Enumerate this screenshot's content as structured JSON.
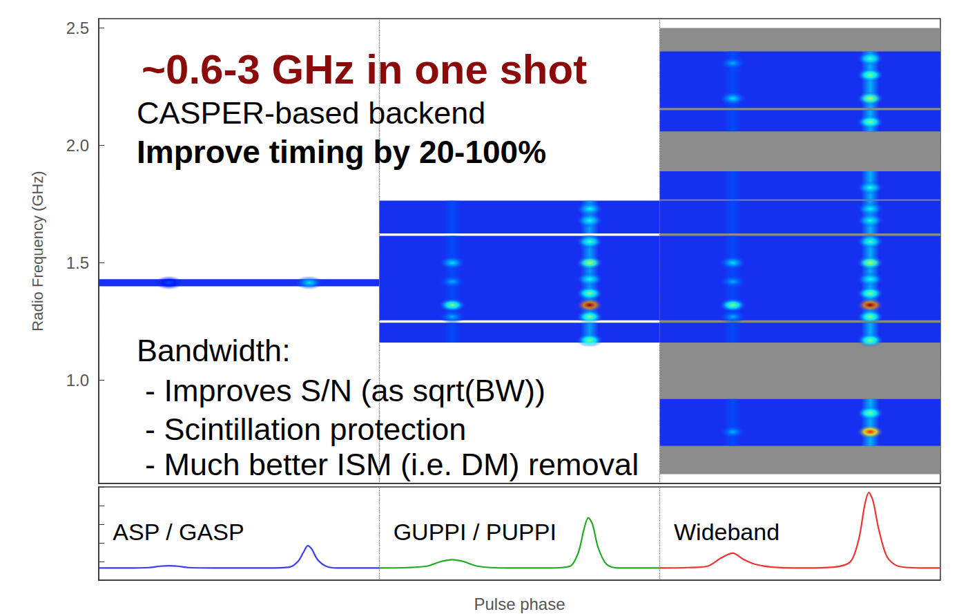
{
  "chart_data": [
    {
      "type": "dynamic_spectrum",
      "title": "~0.6-3 GHz in one shot",
      "annotations": [
        "CASPER-based backend",
        "Improve timing by 20-100%",
        "Bandwidth:",
        "- Improves S/N (as sqrt(BW))",
        "- Scintillation protection",
        "- Much better ISM (i.e. DM) removal"
      ],
      "ylabel": "Radio Frequency (GHz)",
      "xlim": [
        0,
        3
      ],
      "xticks": [
        0,
        1,
        2,
        3
      ],
      "ylim": [
        0.56,
        2.54
      ],
      "yticks": [
        {
          "value": 1,
          "label": "1.0"
        },
        1.5,
        {
          "value": 2,
          "label": "2.0"
        },
        2.5
      ],
      "grid": "x",
      "tick_labels": "y",
      "color": "#1530f0",
      "panels": [
        {
          "phase_range": [
            0,
            1
          ],
          "bands": [
            [
              1.4,
              1.43
            ]
          ],
          "pulses": [
            [
              0.75,
              0.2
            ],
            [
              0.25,
              0.12
            ]
          ],
          "scintles": [
            [
              0.75,
              1.415,
              0.35
            ],
            [
              0.25,
              1.415,
              0.2
            ]
          ]
        },
        {
          "phase_range": [
            1,
            2
          ],
          "bands": [
            [
              1.16,
              1.245
            ],
            [
              1.255,
              1.615
            ],
            [
              1.625,
              1.765
            ]
          ],
          "pulses": [
            [
              1.75,
              0.3
            ],
            [
              1.26,
              0.2
            ]
          ],
          "scintles": [
            [
              1.75,
              1.17,
              0.5
            ],
            [
              1.75,
              1.27,
              0.5
            ],
            [
              1.75,
              1.32,
              1.0
            ],
            [
              1.75,
              1.37,
              0.5
            ],
            [
              1.75,
              1.43,
              0.4
            ],
            [
              1.75,
              1.5,
              0.55
            ],
            [
              1.75,
              1.59,
              0.45
            ],
            [
              1.75,
              1.68,
              0.4
            ],
            [
              1.75,
              1.73,
              0.38
            ],
            [
              1.26,
              1.32,
              0.5
            ],
            [
              1.26,
              1.42,
              0.3
            ],
            [
              1.26,
              1.5,
              0.35
            ],
            [
              1.26,
              1.27,
              0.3
            ]
          ]
        },
        {
          "phase_range": [
            2,
            3
          ],
          "coverage": [
            0.6,
            2.5
          ],
          "bands": [
            [
              0.72,
              0.92
            ],
            [
              1.16,
              1.245
            ],
            [
              1.255,
              1.615
            ],
            [
              1.625,
              1.765
            ],
            [
              1.77,
              1.89
            ],
            [
              2.06,
              2.15
            ],
            [
              2.16,
              2.4
            ]
          ],
          "pulses": [
            [
              2.75,
              0.32
            ],
            [
              2.26,
              0.2
            ]
          ],
          "scintles": [
            [
              2.75,
              1.17,
              0.5
            ],
            [
              2.75,
              1.27,
              0.5
            ],
            [
              2.75,
              1.32,
              1.0
            ],
            [
              2.75,
              1.37,
              0.5
            ],
            [
              2.75,
              1.43,
              0.4
            ],
            [
              2.75,
              1.5,
              0.55
            ],
            [
              2.75,
              1.59,
              0.45
            ],
            [
              2.75,
              1.68,
              0.4
            ],
            [
              2.75,
              1.73,
              0.38
            ],
            [
              2.75,
              2.1,
              0.5
            ],
            [
              2.75,
              2.2,
              0.55
            ],
            [
              2.75,
              2.3,
              0.5
            ],
            [
              2.75,
              2.37,
              0.45
            ],
            [
              2.75,
              1.82,
              0.4
            ],
            [
              2.75,
              0.78,
              0.85
            ],
            [
              2.75,
              0.86,
              0.5
            ],
            [
              2.26,
              1.32,
              0.5
            ],
            [
              2.26,
              1.42,
              0.3
            ],
            [
              2.26,
              1.5,
              0.35
            ],
            [
              2.26,
              1.27,
              0.3
            ],
            [
              2.26,
              2.2,
              0.35
            ],
            [
              2.26,
              2.35,
              0.3
            ],
            [
              2.26,
              0.78,
              0.3
            ]
          ]
        }
      ]
    },
    {
      "type": "line",
      "xlabel": "Pulse phase",
      "xlim": [
        0,
        3
      ],
      "xticks": [
        0,
        1,
        2,
        3
      ],
      "ylim": [
        0,
        1
      ],
      "yticks": [
        0,
        0.2,
        0.4,
        0.6,
        0.8,
        1
      ],
      "grid": "x",
      "tick_labels": false,
      "series": [
        {
          "name": "ASP / GASP",
          "color": "#3a3aff",
          "x": [
            0,
            0.1,
            0.18,
            0.22,
            0.25,
            0.28,
            0.32,
            0.45,
            0.6,
            0.68,
            0.71,
            0.73,
            0.745,
            0.76,
            0.78,
            0.81,
            0.85,
            0.95,
            1.0
          ],
          "values": [
            0.13,
            0.13,
            0.135,
            0.15,
            0.155,
            0.15,
            0.135,
            0.13,
            0.13,
            0.14,
            0.2,
            0.3,
            0.37,
            0.33,
            0.22,
            0.15,
            0.13,
            0.13,
            0.13
          ]
        },
        {
          "name": "GUPPI / PUPPI",
          "color": "#22a822",
          "x": [
            1.0,
            1.1,
            1.17,
            1.22,
            1.26,
            1.3,
            1.35,
            1.45,
            1.6,
            1.68,
            1.71,
            1.73,
            1.745,
            1.76,
            1.78,
            1.81,
            1.85,
            1.95,
            2.0
          ],
          "values": [
            0.13,
            0.135,
            0.15,
            0.2,
            0.22,
            0.2,
            0.15,
            0.13,
            0.13,
            0.15,
            0.3,
            0.55,
            0.67,
            0.6,
            0.35,
            0.17,
            0.13,
            0.13,
            0.13
          ]
        },
        {
          "name": "Wideband",
          "color": "#ee3333",
          "x": [
            2.0,
            2.1,
            2.17,
            2.22,
            2.26,
            2.3,
            2.34,
            2.4,
            2.5,
            2.62,
            2.68,
            2.71,
            2.73,
            2.745,
            2.76,
            2.78,
            2.81,
            2.85,
            2.95,
            3.0
          ],
          "values": [
            0.13,
            0.135,
            0.15,
            0.24,
            0.29,
            0.22,
            0.17,
            0.14,
            0.13,
            0.14,
            0.2,
            0.45,
            0.8,
            0.94,
            0.85,
            0.55,
            0.25,
            0.15,
            0.13,
            0.13
          ]
        }
      ]
    }
  ]
}
